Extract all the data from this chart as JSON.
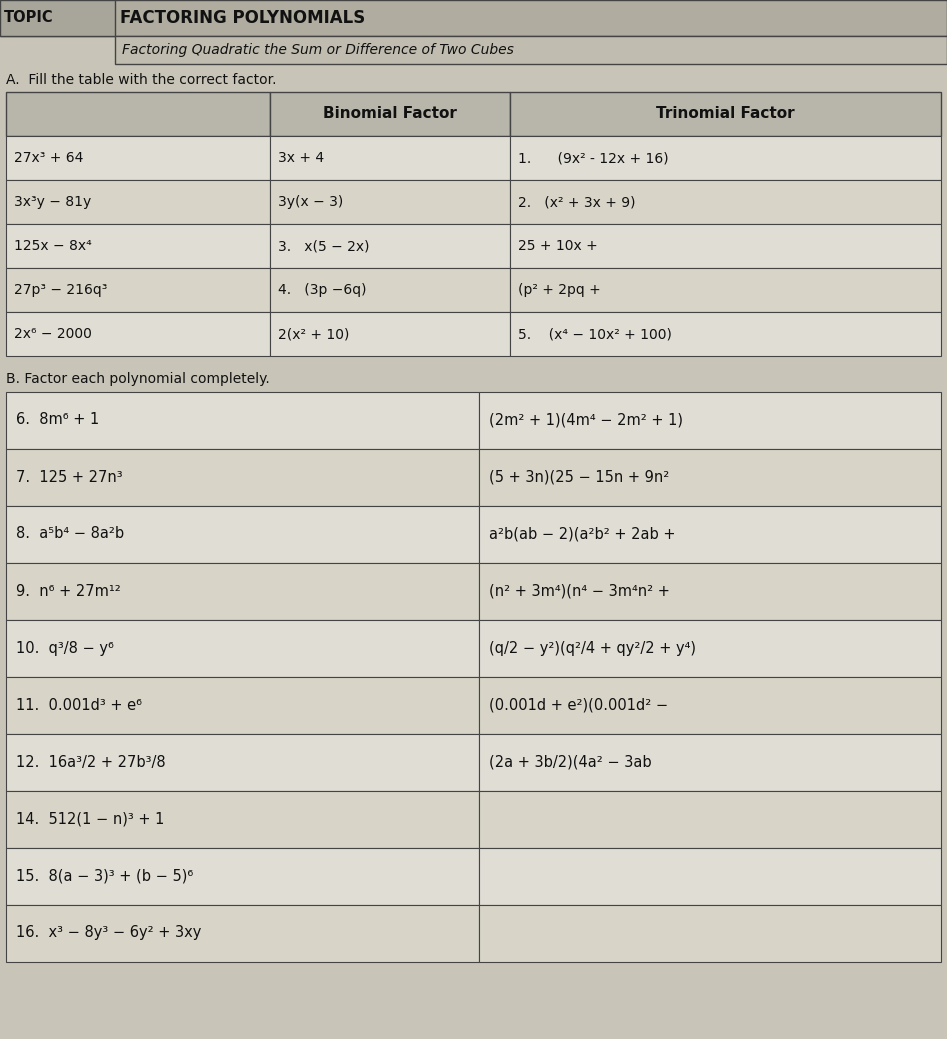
{
  "title_topic": "FACTORING POLYNOMIALS",
  "subtitle": "Factoring Quadratic the Sum or Difference of Two Cubes",
  "section_a_title": "A.  Fill the table with the correct factor.",
  "section_b_title": "B. Factor each polynomial completely.",
  "table_a_headers": [
    "",
    "Binomial Factor",
    "Trinomial Factor"
  ],
  "table_a_rows": [
    [
      "27x³ + 64",
      "3x + 4",
      "1.      (9x² - 12x + 16)"
    ],
    [
      "3x³y − 81y",
      "3y(x − 3)",
      "2.   (x² + 3x + 9)"
    ],
    [
      "125x − 8x⁴",
      "3.   x(5 − 2x)",
      "25 + 10x +"
    ],
    [
      "27p³ − 216q³",
      "4.   (3p −6q)",
      "(p² + 2pq +"
    ],
    [
      "2x⁶ − 2000",
      "2(x² + 10)",
      "5.    (x⁴ − 10x² + 100)"
    ]
  ],
  "table_b_left": [
    "6.  8m⁶ + 1",
    "7.  125 + 27n³",
    "8.  a⁵b⁴ − 8a²b",
    "9.  n⁶ + 27m¹²",
    "10.  q³/8 − y⁶",
    "11.  0.001d³ + e⁶",
    "12.  16a³/2 + 27b³/8",
    "14.  512(1 − n)³ + 1",
    "15.  8(a − 3)³ + (b − 5)⁶",
    "16.  x³ − 8y³ − 6y² + 3xy"
  ],
  "table_b_right": [
    "(2m² + 1)(4m⁴ − 2m² + 1)",
    "(5 + 3n)(25 − 15n + 9n²",
    "a²b(ab − 2)(a²b² + 2ab +",
    "(n² + 3m⁴)(n⁴ − 3m⁴n² +",
    "(q/2 − y²)(q²/4 + qy²/2 + y⁴)",
    "(0.001d + e²)(0.001d² −",
    "(2a + 3b/2)(4a² − 3ab",
    "",
    "",
    ""
  ],
  "bg_color": "#c8c5b8",
  "cell_bg_light": "#d8d4c8",
  "cell_bg_white": "#e0ddd5",
  "header_bg": "#b8b5aa",
  "line_color": "#555555",
  "text_color": "#111111",
  "title_bg": "#b0ada0",
  "subtitle_bg": "#c0bdb0"
}
